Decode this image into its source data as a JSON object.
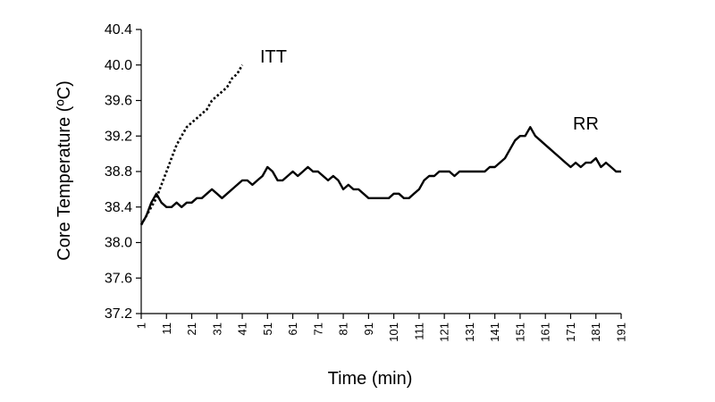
{
  "chart_data": {
    "type": "line",
    "xlabel": "Time (min)",
    "ylabel": "Core Temperature (ºC)",
    "xlim": [
      1,
      191
    ],
    "ylim": [
      37.2,
      40.4
    ],
    "y_ticks": [
      "37.2",
      "37.6",
      "38.0",
      "38.4",
      "38.8",
      "39.2",
      "39.6",
      "40.0",
      "40.4"
    ],
    "x_ticks": [
      "1",
      "11",
      "21",
      "31",
      "41",
      "51",
      "61",
      "71",
      "81",
      "91",
      "101",
      "111",
      "121",
      "131",
      "141",
      "151",
      "161",
      "171",
      "181",
      "191"
    ],
    "grid": false,
    "legend": "none (series labelled directly on plot)",
    "series": [
      {
        "name": "ITT",
        "style": "dotted",
        "color": "#000000",
        "x": [
          1,
          3,
          5,
          7,
          9,
          11,
          13,
          15,
          17,
          19,
          21,
          23,
          25,
          27,
          29,
          31,
          33,
          35,
          37,
          39,
          41
        ],
        "y": [
          38.2,
          38.3,
          38.4,
          38.5,
          38.65,
          38.8,
          38.95,
          39.1,
          39.2,
          39.3,
          39.35,
          39.4,
          39.45,
          39.5,
          39.6,
          39.65,
          39.7,
          39.75,
          39.85,
          39.9,
          40.0
        ]
      },
      {
        "name": "RR",
        "style": "solid",
        "color": "#000000",
        "x": [
          1,
          3,
          5,
          7,
          9,
          11,
          13,
          15,
          17,
          19,
          21,
          23,
          25,
          27,
          29,
          31,
          33,
          35,
          37,
          39,
          41,
          43,
          45,
          47,
          49,
          51,
          53,
          55,
          57,
          59,
          61,
          63,
          65,
          67,
          69,
          71,
          73,
          75,
          77,
          79,
          81,
          83,
          85,
          87,
          89,
          91,
          93,
          95,
          97,
          99,
          101,
          103,
          105,
          107,
          109,
          111,
          113,
          115,
          117,
          119,
          121,
          123,
          125,
          127,
          129,
          131,
          133,
          135,
          137,
          139,
          141,
          143,
          145,
          147,
          149,
          151,
          153,
          155,
          157,
          159,
          161,
          163,
          165,
          167,
          169,
          171,
          173,
          175,
          177,
          179,
          181,
          183,
          185,
          187,
          189,
          191
        ],
        "y": [
          38.2,
          38.3,
          38.45,
          38.55,
          38.45,
          38.4,
          38.4,
          38.45,
          38.4,
          38.45,
          38.45,
          38.5,
          38.5,
          38.55,
          38.6,
          38.55,
          38.5,
          38.55,
          38.6,
          38.65,
          38.7,
          38.7,
          38.65,
          38.7,
          38.75,
          38.85,
          38.8,
          38.7,
          38.7,
          38.75,
          38.8,
          38.75,
          38.8,
          38.85,
          38.8,
          38.8,
          38.75,
          38.7,
          38.75,
          38.7,
          38.6,
          38.65,
          38.6,
          38.6,
          38.55,
          38.5,
          38.5,
          38.5,
          38.5,
          38.5,
          38.55,
          38.55,
          38.5,
          38.5,
          38.55,
          38.6,
          38.7,
          38.75,
          38.75,
          38.8,
          38.8,
          38.8,
          38.75,
          38.8,
          38.8,
          38.8,
          38.8,
          38.8,
          38.8,
          38.85,
          38.85,
          38.9,
          38.95,
          39.05,
          39.15,
          39.2,
          39.2,
          39.3,
          39.2,
          39.15,
          39.1,
          39.05,
          39.0,
          38.95,
          38.9,
          38.85,
          38.9,
          38.85,
          38.9,
          38.9,
          38.95,
          38.85,
          38.9,
          38.85,
          38.8,
          38.8
        ]
      }
    ]
  }
}
